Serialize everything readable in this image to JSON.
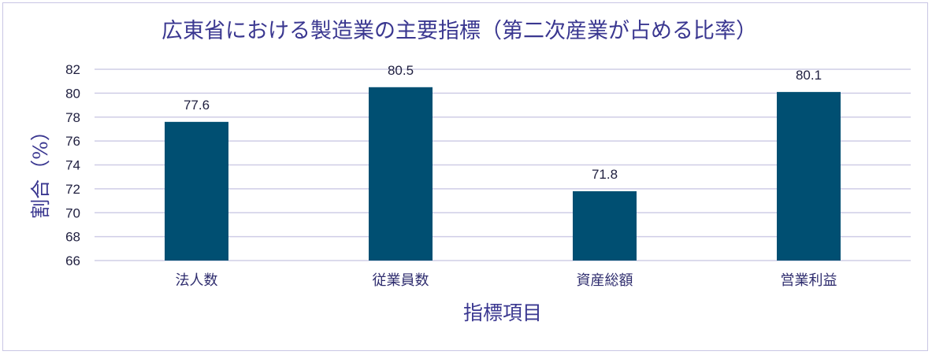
{
  "chart_data": {
    "type": "bar",
    "title": "広東省における製造業の主要指標（第二次産業が占める比率）",
    "xlabel": "指標項目",
    "ylabel": "割合（%）",
    "categories": [
      "法人数",
      "従業員数",
      "資産総額",
      "営業利益"
    ],
    "values": [
      77.6,
      80.5,
      71.8,
      80.1
    ],
    "ylim": [
      66,
      82
    ],
    "yticks": [
      66,
      68,
      70,
      72,
      74,
      76,
      78,
      80,
      82
    ],
    "grid": true,
    "legend": "none",
    "bar_color": "#004f72",
    "data_labels": true
  }
}
